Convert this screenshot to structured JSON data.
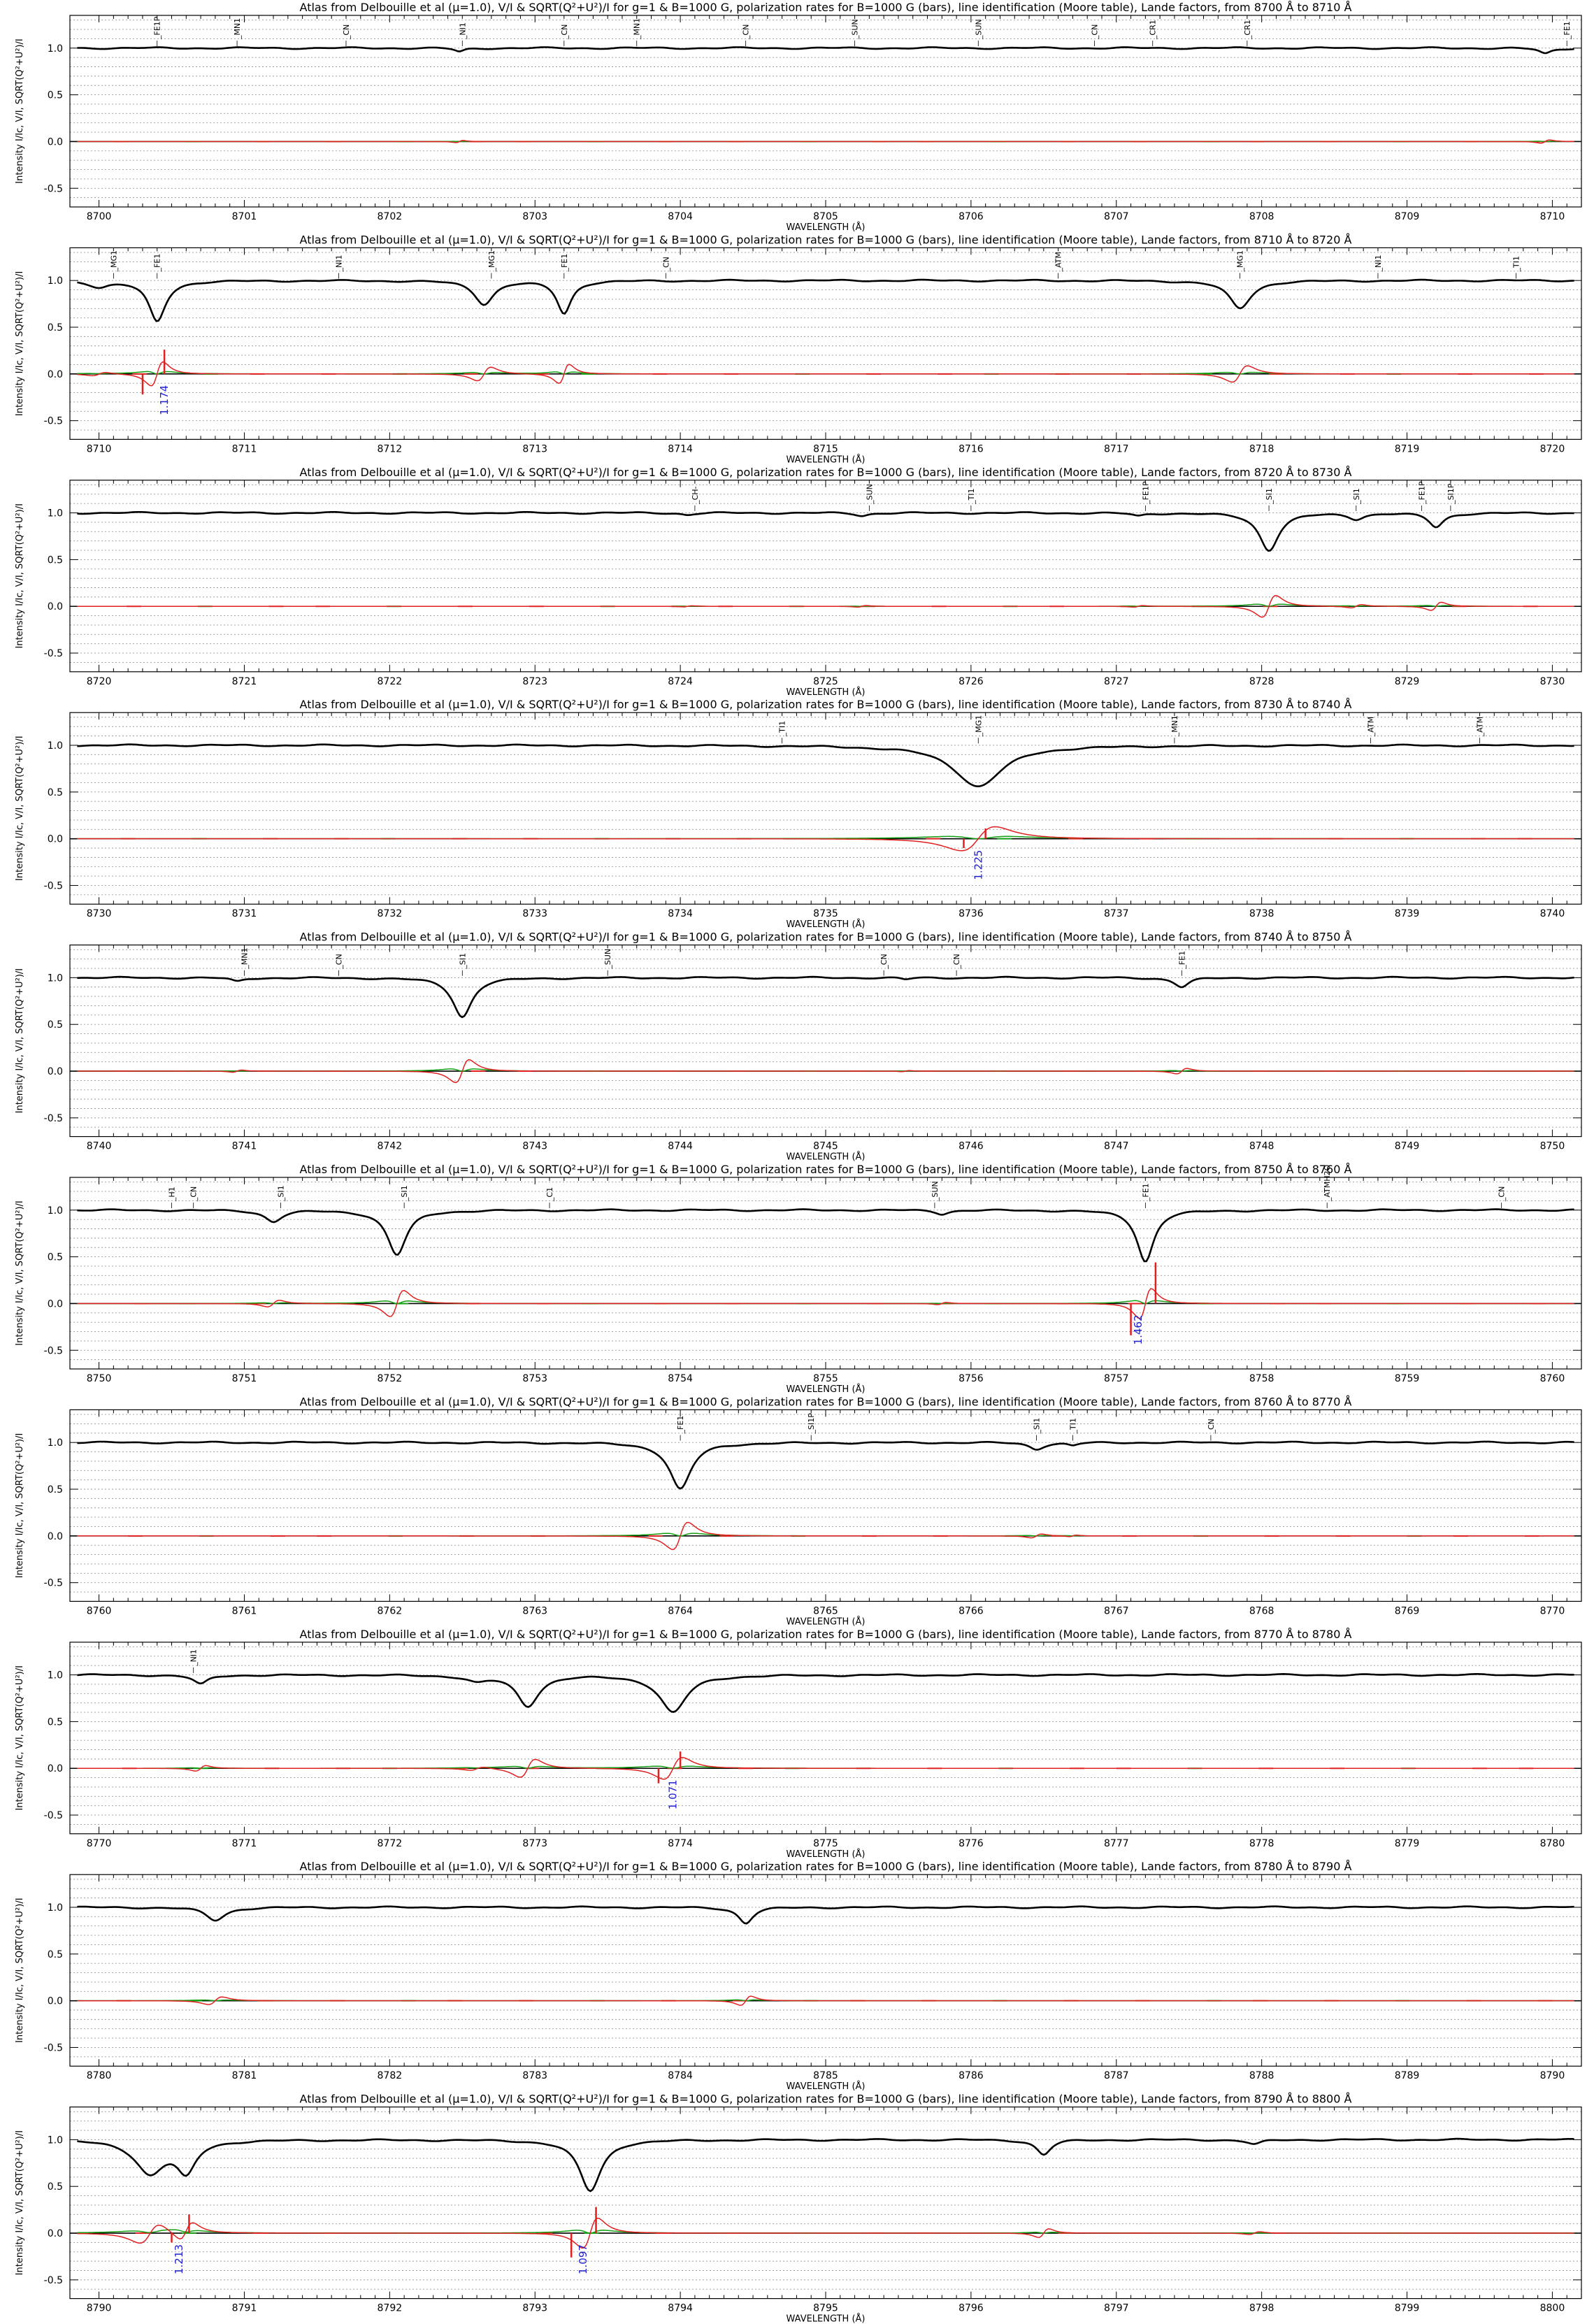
{
  "chart_data": [
    {
      "type": "line",
      "title": "Atlas from Delbouille et al (μ=1.0), V/I & SQRT(Q²+U²)/I for g=1 & B=1000 G, polarization rates for B=1000 G (bars), line identification (Moore table), Lande factors, from 8700 Å to 8710 Å",
      "xlabel": "WAVELENGTH (Å)",
      "ylabel": "Intensity I/Ic, V/I, SQRT(Q²+U²)/I",
      "xlim": [
        8699.8,
        8710.2
      ],
      "ylim": [
        -0.7,
        1.35
      ],
      "xticks": [
        8700,
        8701,
        8702,
        8703,
        8704,
        8705,
        8706,
        8707,
        8708,
        8709,
        8710
      ],
      "yticks": [
        -0.5,
        0.0,
        0.5,
        1.0
      ],
      "yticklabels": [
        "-0.5",
        "0.0",
        "0.5",
        "1.0"
      ],
      "lines": [
        [
          8702.48,
          0.04,
          0.04
        ],
        [
          8709.95,
          0.06,
          0.05
        ]
      ],
      "idents": [
        {
          "x": 8700.4,
          "label": "FE1P"
        },
        {
          "x": 8700.95,
          "label": "MN1"
        },
        {
          "x": 8701.7,
          "label": "CN"
        },
        {
          "x": 8702.5,
          "label": "NI1"
        },
        {
          "x": 8703.2,
          "label": "CN"
        },
        {
          "x": 8703.7,
          "label": "MN1"
        },
        {
          "x": 8704.45,
          "label": "CN"
        },
        {
          "x": 8705.2,
          "label": "SUN"
        },
        {
          "x": 8706.05,
          "label": "SUN"
        },
        {
          "x": 8706.85,
          "label": "CN"
        },
        {
          "x": 8707.25,
          "label": "CR1"
        },
        {
          "x": 8707.9,
          "label": "CR1"
        },
        {
          "x": 8710.1,
          "label": "FE1"
        }
      ],
      "bars": [],
      "lande": []
    },
    {
      "type": "line",
      "title": "Atlas from Delbouille et al (μ=1.0), V/I & SQRT(Q²+U²)/I for g=1 & B=1000 G, polarization rates for B=1000 G (bars), line identification (Moore table), Lande factors, from 8710 Å to 8720 Å",
      "xlabel": "WAVELENGTH (Å)",
      "ylabel": "Intensity I/Ic, V/I, SQRT(Q²+U²)/I",
      "xlim": [
        8709.8,
        8720.2
      ],
      "ylim": [
        -0.7,
        1.35
      ],
      "xticks": [
        8710,
        8711,
        8712,
        8713,
        8714,
        8715,
        8716,
        8717,
        8718,
        8719,
        8720
      ],
      "yticks": [
        -0.5,
        0.0,
        0.5,
        1.0
      ],
      "yticklabels": [
        "-0.5",
        "0.0",
        "0.5",
        "1.0"
      ],
      "lines": [
        [
          8710.0,
          0.06,
          0.08
        ],
        [
          8710.4,
          0.44,
          0.07
        ],
        [
          8712.65,
          0.25,
          0.08
        ],
        [
          8713.2,
          0.35,
          0.06
        ],
        [
          8717.85,
          0.3,
          0.09
        ]
      ],
      "idents": [
        {
          "x": 8710.1,
          "label": "MG1"
        },
        {
          "x": 8710.4,
          "label": "FE1"
        },
        {
          "x": 8711.65,
          "label": "NI1"
        },
        {
          "x": 8712.7,
          "label": "MG1"
        },
        {
          "x": 8713.2,
          "label": "FE1"
        },
        {
          "x": 8713.9,
          "label": "CN"
        },
        {
          "x": 8716.6,
          "label": "ATM"
        },
        {
          "x": 8717.85,
          "label": "MG1"
        },
        {
          "x": 8718.8,
          "label": "NI1"
        },
        {
          "x": 8719.75,
          "label": "TI1"
        }
      ],
      "bars": [
        {
          "x": 8710.3,
          "v": -0.22
        },
        {
          "x": 8710.45,
          "v": 0.26
        }
      ],
      "lande": [
        {
          "x": 8710.45,
          "label": "1.174"
        }
      ]
    },
    {
      "type": "line",
      "title": "Atlas from Delbouille et al (μ=1.0), V/I & SQRT(Q²+U²)/I for g=1 & B=1000 G, polarization rates for B=1000 G (bars), line identification (Moore table), Lande factors, from 8720 Å to 8730 Å",
      "xlabel": "WAVELENGTH (Å)",
      "ylabel": "Intensity I/Ic, V/I, SQRT(Q²+U²)/I",
      "xlim": [
        8719.8,
        8730.2
      ],
      "ylim": [
        -0.7,
        1.35
      ],
      "xticks": [
        8720,
        8721,
        8722,
        8723,
        8724,
        8725,
        8726,
        8727,
        8728,
        8729,
        8730
      ],
      "yticks": [
        -0.5,
        0.0,
        0.5,
        1.0
      ],
      "yticklabels": [
        "-0.5",
        "0.0",
        "0.5",
        "1.0"
      ],
      "lines": [
        [
          8724.05,
          0.02,
          0.05
        ],
        [
          8725.25,
          0.03,
          0.05
        ],
        [
          8727.15,
          0.03,
          0.05
        ],
        [
          8728.05,
          0.4,
          0.08
        ],
        [
          8728.65,
          0.06,
          0.06
        ],
        [
          8729.2,
          0.15,
          0.06
        ]
      ],
      "idents": [
        {
          "x": 8724.1,
          "label": "CH-"
        },
        {
          "x": 8725.3,
          "label": "SUN"
        },
        {
          "x": 8726.0,
          "label": "TI1"
        },
        {
          "x": 8727.2,
          "label": "FE1P"
        },
        {
          "x": 8728.05,
          "label": "SI1"
        },
        {
          "x": 8728.65,
          "label": "SI1"
        },
        {
          "x": 8729.1,
          "label": "FE1P"
        },
        {
          "x": 8729.3,
          "label": "SI1P"
        }
      ],
      "bars": [],
      "lande": []
    },
    {
      "type": "line",
      "title": "Atlas from Delbouille et al (μ=1.0), V/I & SQRT(Q²+U²)/I for g=1 & B=1000 G, polarization rates for B=1000 G (bars), line identification (Moore table), Lande factors, from 8730 Å to 8740 Å",
      "xlabel": "WAVELENGTH (Å)",
      "ylabel": "Intensity I/Ic, V/I, SQRT(Q²+U²)/I",
      "xlim": [
        8729.8,
        8740.2
      ],
      "ylim": [
        -0.7,
        1.35
      ],
      "xticks": [
        8730,
        8731,
        8732,
        8733,
        8734,
        8735,
        8736,
        8737,
        8738,
        8739,
        8740
      ],
      "yticks": [
        -0.5,
        0.0,
        0.5,
        1.0
      ],
      "yticklabels": [
        "-0.5",
        "0.0",
        "0.5",
        "1.0"
      ],
      "lines": [
        [
          8736.05,
          0.44,
          0.2
        ]
      ],
      "idents": [
        {
          "x": 8734.7,
          "label": "TI1"
        },
        {
          "x": 8736.05,
          "label": "MG1"
        },
        {
          "x": 8737.4,
          "label": "MN1"
        },
        {
          "x": 8738.75,
          "label": "ATM"
        },
        {
          "x": 8739.5,
          "label": "ATM"
        }
      ],
      "bars": [
        {
          "x": 8735.95,
          "v": -0.1
        },
        {
          "x": 8736.1,
          "v": 0.11
        }
      ],
      "lande": [
        {
          "x": 8736.05,
          "label": "1.225"
        }
      ]
    },
    {
      "type": "line",
      "title": "Atlas from Delbouille et al (μ=1.0), V/I & SQRT(Q²+U²)/I for g=1 & B=1000 G, polarization rates for B=1000 G (bars), line identification (Moore table), Lande factors, from 8740 Å to 8750 Å",
      "xlabel": "WAVELENGTH (Å)",
      "ylabel": "Intensity I/Ic, V/I, SQRT(Q²+U²)/I",
      "xlim": [
        8739.8,
        8750.2
      ],
      "ylim": [
        -0.7,
        1.35
      ],
      "xticks": [
        8740,
        8741,
        8742,
        8743,
        8744,
        8745,
        8746,
        8747,
        8748,
        8749,
        8750
      ],
      "yticks": [
        -0.5,
        0.0,
        0.5,
        1.0
      ],
      "yticklabels": [
        "-0.5",
        "0.0",
        "0.5",
        "1.0"
      ],
      "lines": [
        [
          8740.95,
          0.04,
          0.05
        ],
        [
          8742.5,
          0.42,
          0.08
        ],
        [
          8745.55,
          0.02,
          0.04
        ],
        [
          8747.45,
          0.1,
          0.06
        ]
      ],
      "idents": [
        {
          "x": 8741.0,
          "label": "MN1"
        },
        {
          "x": 8741.65,
          "label": "CN"
        },
        {
          "x": 8742.5,
          "label": "SI1"
        },
        {
          "x": 8743.5,
          "label": "SUN"
        },
        {
          "x": 8745.4,
          "label": "CN"
        },
        {
          "x": 8745.9,
          "label": "CN"
        },
        {
          "x": 8747.45,
          "label": "FE1"
        }
      ],
      "bars": [],
      "lande": []
    },
    {
      "type": "line",
      "title": "Atlas from Delbouille et al (μ=1.0), V/I & SQRT(Q²+U²)/I for g=1 & B=1000 G, polarization rates for B=1000 G (bars), line identification (Moore table), Lande factors, from 8750 Å to 8760 Å",
      "xlabel": "WAVELENGTH (Å)",
      "ylabel": "Intensity I/Ic, V/I, SQRT(Q²+U²)/I",
      "xlim": [
        8749.8,
        8760.2
      ],
      "ylim": [
        -0.7,
        1.35
      ],
      "xticks": [
        8750,
        8751,
        8752,
        8753,
        8754,
        8755,
        8756,
        8757,
        8758,
        8759,
        8760
      ],
      "yticks": [
        -0.5,
        0.0,
        0.5,
        1.0
      ],
      "yticklabels": [
        "-0.5",
        "0.0",
        "0.5",
        "1.0"
      ],
      "lines": [
        [
          8751.2,
          0.12,
          0.07
        ],
        [
          8752.05,
          0.48,
          0.08
        ],
        [
          8755.8,
          0.04,
          0.05
        ],
        [
          8757.2,
          0.55,
          0.07
        ]
      ],
      "idents": [
        {
          "x": 8750.5,
          "label": "H1"
        },
        {
          "x": 8750.65,
          "label": "CN"
        },
        {
          "x": 8751.25,
          "label": "SI1"
        },
        {
          "x": 8752.1,
          "label": "SI1"
        },
        {
          "x": 8753.1,
          "label": "C1"
        },
        {
          "x": 8755.75,
          "label": "SUN"
        },
        {
          "x": 8757.2,
          "label": "FE1"
        },
        {
          "x": 8758.45,
          "label": "ATMH2O"
        },
        {
          "x": 8759.65,
          "label": "CN"
        }
      ],
      "bars": [
        {
          "x": 8757.1,
          "v": -0.34
        },
        {
          "x": 8757.27,
          "v": 0.44
        }
      ],
      "lande": [
        {
          "x": 8757.15,
          "label": "1.462"
        }
      ]
    },
    {
      "type": "line",
      "title": "Atlas from Delbouille et al (μ=1.0), V/I & SQRT(Q²+U²)/I for g=1 & B=1000 G, polarization rates for B=1000 G (bars), line identification (Moore table), Lande factors, from 8760 Å to 8770 Å",
      "xlabel": "WAVELENGTH (Å)",
      "ylabel": "Intensity I/Ic, V/I, SQRT(Q²+U²)/I",
      "xlim": [
        8759.8,
        8770.2
      ],
      "ylim": [
        -0.7,
        1.35
      ],
      "xticks": [
        8760,
        8761,
        8762,
        8763,
        8764,
        8765,
        8766,
        8767,
        8768,
        8769,
        8770
      ],
      "yticks": [
        -0.5,
        0.0,
        0.5,
        1.0
      ],
      "yticklabels": [
        "-0.5",
        "0.0",
        "0.5",
        "1.0"
      ],
      "lines": [
        [
          8764.0,
          0.5,
          0.09
        ],
        [
          8766.45,
          0.07,
          0.06
        ],
        [
          8766.7,
          0.03,
          0.04
        ]
      ],
      "idents": [
        {
          "x": 8764.0,
          "label": "FE1"
        },
        {
          "x": 8764.9,
          "label": "SI1P"
        },
        {
          "x": 8766.45,
          "label": "SI1"
        },
        {
          "x": 8766.7,
          "label": "TI1"
        },
        {
          "x": 8767.65,
          "label": "CN"
        }
      ],
      "bars": [],
      "lande": []
    },
    {
      "type": "line",
      "title": "Atlas from Delbouille et al (μ=1.0), V/I & SQRT(Q²+U²)/I for g=1 & B=1000 G, polarization rates for B=1000 G (bars), line identification (Moore table), Lande factors, from 8770 Å to 8780 Å",
      "xlabel": "WAVELENGTH (Å)",
      "ylabel": "Intensity I/Ic, V/I, SQRT(Q²+U²)/I",
      "xlim": [
        8769.8,
        8780.2
      ],
      "ylim": [
        -0.7,
        1.35
      ],
      "xticks": [
        8770,
        8771,
        8772,
        8773,
        8774,
        8775,
        8776,
        8777,
        8778,
        8779,
        8780
      ],
      "yticks": [
        -0.5,
        0.0,
        0.5,
        1.0
      ],
      "yticklabels": [
        "-0.5",
        "0.0",
        "0.5",
        "1.0"
      ],
      "lines": [
        [
          8770.7,
          0.1,
          0.06
        ],
        [
          8772.6,
          0.06,
          0.08
        ],
        [
          8772.95,
          0.33,
          0.09
        ],
        [
          8773.95,
          0.4,
          0.11
        ]
      ],
      "idents": [
        {
          "x": 8770.65,
          "label": "NI1"
        }
      ],
      "bars": [
        {
          "x": 8773.85,
          "v": -0.16
        },
        {
          "x": 8774.0,
          "v": 0.18
        }
      ],
      "lande": [
        {
          "x": 8773.95,
          "label": "1.071"
        }
      ]
    },
    {
      "type": "line",
      "title": "Atlas from Delbouille et al (μ=1.0), V/I & SQRT(Q²+U²)/I for g=1 & B=1000 G, polarization rates for B=1000 G (bars), line identification (Moore table), Lande factors, from 8780 Å to 8790 Å",
      "xlabel": "WAVELENGTH (Å)",
      "ylabel": "Intensity I/Ic, V/I, SQRT(Q²+U²)/I",
      "xlim": [
        8779.8,
        8790.2
      ],
      "ylim": [
        -0.7,
        1.35
      ],
      "xticks": [
        8780,
        8781,
        8782,
        8783,
        8784,
        8785,
        8786,
        8787,
        8788,
        8789,
        8790
      ],
      "yticks": [
        -0.5,
        0.0,
        0.5,
        1.0
      ],
      "yticklabels": [
        "-0.5",
        "0.0",
        "0.5",
        "1.0"
      ],
      "lines": [
        [
          8780.8,
          0.14,
          0.08
        ],
        [
          8784.45,
          0.17,
          0.06
        ]
      ],
      "idents": [],
      "bars": [],
      "lande": []
    },
    {
      "type": "line",
      "title": "Atlas from Delbouille et al (μ=1.0), V/I & SQRT(Q²+U²)/I for g=1 & B=1000 G, polarization rates for B=1000 G (bars), line identification (Moore table), Lande factors, from 8790 Å to 8800 Å",
      "xlabel": "WAVELENGTH (Å)",
      "ylabel": "Intensity I/Ic, V/I, SQRT(Q²+U²)/I",
      "xlim": [
        8789.8,
        8800.2
      ],
      "ylim": [
        -0.7,
        1.35
      ],
      "xticks": [
        8790,
        8791,
        8792,
        8793,
        8794,
        8795,
        8796,
        8797,
        8798,
        8799,
        8800
      ],
      "yticks": [
        -0.5,
        0.0,
        0.5,
        1.0
      ],
      "yticklabels": [
        "-0.5",
        "0.0",
        "0.5",
        "1.0"
      ],
      "lines": [
        [
          8790.35,
          0.35,
          0.12
        ],
        [
          8790.6,
          0.33,
          0.08
        ],
        [
          8793.38,
          0.55,
          0.09
        ],
        [
          8796.5,
          0.16,
          0.06
        ],
        [
          8797.95,
          0.05,
          0.06
        ]
      ],
      "idents": [],
      "bars": [
        {
          "x": 8790.5,
          "v": -0.1
        },
        {
          "x": 8790.62,
          "v": 0.2
        },
        {
          "x": 8793.25,
          "v": -0.26
        },
        {
          "x": 8793.42,
          "v": 0.28
        }
      ],
      "lande": [
        {
          "x": 8790.55,
          "label": "1.213"
        },
        {
          "x": 8793.33,
          "label": "1.097"
        }
      ]
    }
  ]
}
